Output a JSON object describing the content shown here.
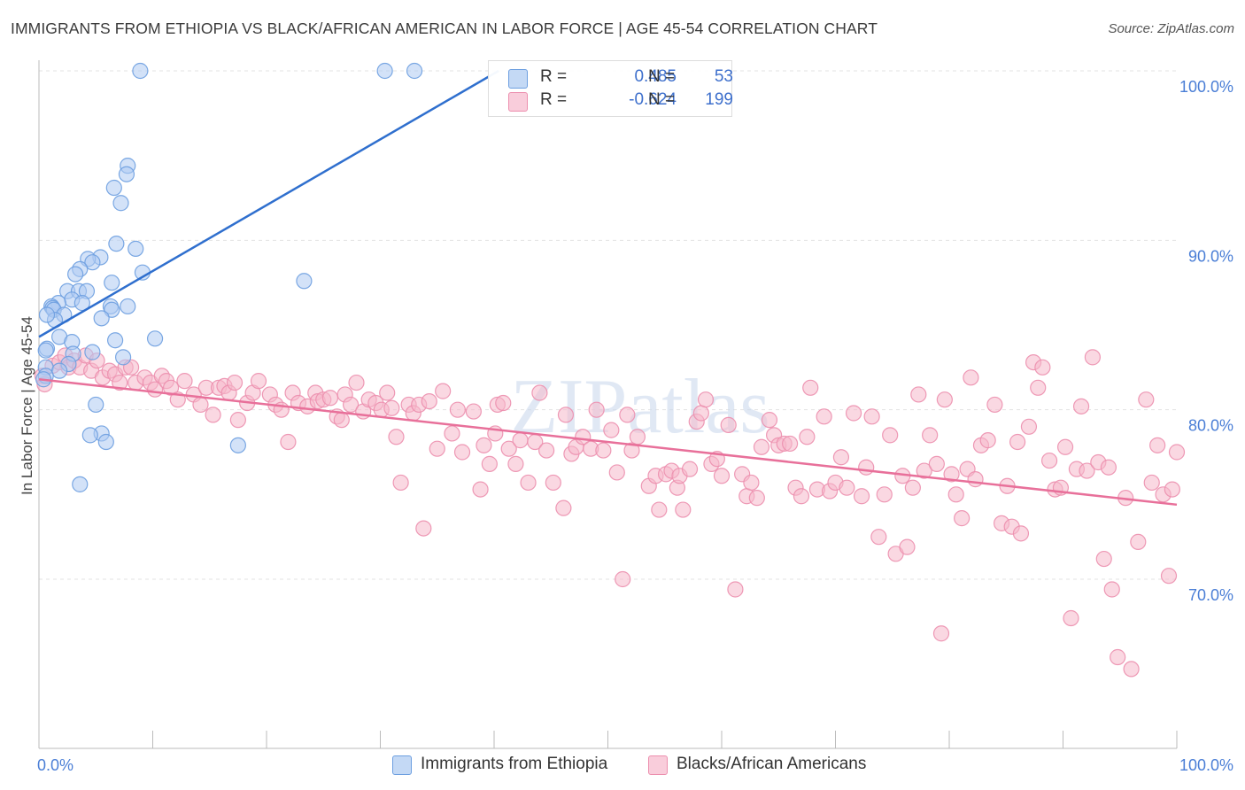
{
  "header": {
    "title": "IMMIGRANTS FROM ETHIOPIA VS BLACK/AFRICAN AMERICAN IN LABOR FORCE | AGE 45-54 CORRELATION CHART",
    "source": "Source: ZipAtlas.com"
  },
  "watermark": "ZIPatlas",
  "legend": {
    "r_label": "R =",
    "n_label": "N =",
    "series1": {
      "r": "0.485",
      "n": "53"
    },
    "series2": {
      "r": "-0.624",
      "n": "199"
    }
  },
  "colors": {
    "blue_fill": "#aecbf2",
    "blue_stroke": "#6d9fe0",
    "blue_line": "#2f6fce",
    "pink_fill": "#f5b8cb",
    "pink_stroke": "#ec8fae",
    "pink_line": "#e8709a",
    "tick_text": "#4a7ed6",
    "grid": "#e3e3e3"
  },
  "chart_data": {
    "type": "scatter",
    "title": "IMMIGRANTS FROM ETHIOPIA VS BLACK/AFRICAN AMERICAN IN LABOR FORCE | AGE 45-54 CORRELATION CHART",
    "xlabel": "",
    "ylabel": "In Labor Force | Age 45-54",
    "xlim": [
      0,
      100
    ],
    "ylim": [
      60.5,
      102
    ],
    "x_tick_labels": [
      {
        "value": 0,
        "label": "0.0%"
      },
      {
        "value": 100,
        "label": "100.0%"
      }
    ],
    "y_tick_labels": [
      {
        "value": 70,
        "label": "70.0%"
      },
      {
        "value": 80,
        "label": "80.0%"
      },
      {
        "value": 90,
        "label": "90.0%"
      },
      {
        "value": 100,
        "label": "100.0%"
      }
    ],
    "legend_position": "top-center",
    "series": [
      {
        "name": "Immigrants from Ethiopia",
        "R": 0.485,
        "N": 53,
        "trend": {
          "x": [
            0,
            40.4
          ],
          "y": [
            84.3,
            100.0
          ]
        },
        "points": [
          [
            8.9,
            100.0
          ],
          [
            30.4,
            100.0
          ],
          [
            33.0,
            100.0
          ],
          [
            7.8,
            94.4
          ],
          [
            7.7,
            93.9
          ],
          [
            6.6,
            93.1
          ],
          [
            7.2,
            92.2
          ],
          [
            6.8,
            89.8
          ],
          [
            8.5,
            89.5
          ],
          [
            5.4,
            89.0
          ],
          [
            4.3,
            88.9
          ],
          [
            4.7,
            88.7
          ],
          [
            3.6,
            88.3
          ],
          [
            9.1,
            88.1
          ],
          [
            3.2,
            88.0
          ],
          [
            23.3,
            87.6
          ],
          [
            6.4,
            87.5
          ],
          [
            2.5,
            87.0
          ],
          [
            3.5,
            87.0
          ],
          [
            4.2,
            87.0
          ],
          [
            2.9,
            86.5
          ],
          [
            1.7,
            86.3
          ],
          [
            1.1,
            86.1
          ],
          [
            3.8,
            86.3
          ],
          [
            7.8,
            86.1
          ],
          [
            6.3,
            86.1
          ],
          [
            1.2,
            86.0
          ],
          [
            6.4,
            85.9
          ],
          [
            1.3,
            85.9
          ],
          [
            2.2,
            85.6
          ],
          [
            1.4,
            85.3
          ],
          [
            5.5,
            85.4
          ],
          [
            0.7,
            85.6
          ],
          [
            1.8,
            84.3
          ],
          [
            10.2,
            84.2
          ],
          [
            6.7,
            84.1
          ],
          [
            2.9,
            84.0
          ],
          [
            0.7,
            83.6
          ],
          [
            0.6,
            83.5
          ],
          [
            3.0,
            83.3
          ],
          [
            4.7,
            83.4
          ],
          [
            7.4,
            83.1
          ],
          [
            0.6,
            82.5
          ],
          [
            2.6,
            82.7
          ],
          [
            1.8,
            82.3
          ],
          [
            0.6,
            82.0
          ],
          [
            5.0,
            80.3
          ],
          [
            5.5,
            78.6
          ],
          [
            4.5,
            78.5
          ],
          [
            5.9,
            78.1
          ],
          [
            17.5,
            77.9
          ],
          [
            3.6,
            75.6
          ],
          [
            0.4,
            81.8
          ]
        ]
      },
      {
        "name": "Blacks/African Americans",
        "R": -0.624,
        "N": 199,
        "trend": {
          "x": [
            0,
            100
          ],
          "y": [
            81.8,
            74.4
          ]
        },
        "points": [
          [
            0.3,
            82.0
          ],
          [
            0.5,
            81.5
          ],
          [
            1.2,
            82.6
          ],
          [
            1.8,
            82.8
          ],
          [
            2.3,
            83.2
          ],
          [
            2.6,
            82.5
          ],
          [
            3.1,
            82.9
          ],
          [
            3.6,
            82.5
          ],
          [
            4.1,
            83.2
          ],
          [
            4.6,
            82.3
          ],
          [
            5.1,
            82.9
          ],
          [
            5.6,
            81.9
          ],
          [
            6.2,
            82.3
          ],
          [
            6.7,
            82.1
          ],
          [
            7.1,
            81.6
          ],
          [
            7.6,
            82.5
          ],
          [
            8.1,
            82.5
          ],
          [
            8.5,
            81.6
          ],
          [
            9.3,
            81.9
          ],
          [
            9.8,
            81.6
          ],
          [
            10.2,
            81.2
          ],
          [
            10.8,
            82.0
          ],
          [
            11.2,
            81.7
          ],
          [
            11.6,
            81.3
          ],
          [
            12.2,
            80.6
          ],
          [
            12.8,
            81.7
          ],
          [
            13.6,
            80.9
          ],
          [
            14.2,
            80.3
          ],
          [
            14.7,
            81.3
          ],
          [
            15.3,
            79.7
          ],
          [
            15.8,
            81.3
          ],
          [
            16.3,
            81.4
          ],
          [
            16.7,
            81.0
          ],
          [
            17.2,
            81.6
          ],
          [
            17.5,
            79.4
          ],
          [
            18.3,
            80.4
          ],
          [
            18.8,
            81.0
          ],
          [
            19.3,
            81.7
          ],
          [
            20.3,
            80.9
          ],
          [
            20.8,
            80.3
          ],
          [
            21.3,
            80.0
          ],
          [
            21.9,
            78.1
          ],
          [
            22.3,
            81.0
          ],
          [
            22.8,
            80.4
          ],
          [
            23.6,
            80.2
          ],
          [
            24.3,
            81.0
          ],
          [
            24.5,
            80.5
          ],
          [
            25.0,
            80.6
          ],
          [
            25.6,
            80.7
          ],
          [
            26.2,
            79.6
          ],
          [
            26.6,
            79.4
          ],
          [
            26.9,
            80.9
          ],
          [
            27.4,
            80.3
          ],
          [
            27.9,
            81.6
          ],
          [
            28.5,
            79.9
          ],
          [
            29.0,
            80.6
          ],
          [
            29.6,
            80.4
          ],
          [
            30.1,
            80.0
          ],
          [
            30.6,
            81.0
          ],
          [
            31.0,
            80.1
          ],
          [
            31.4,
            78.4
          ],
          [
            31.8,
            75.7
          ],
          [
            32.5,
            80.3
          ],
          [
            32.9,
            79.8
          ],
          [
            33.4,
            80.3
          ],
          [
            33.8,
            73.0
          ],
          [
            34.3,
            80.5
          ],
          [
            35.0,
            77.7
          ],
          [
            35.5,
            81.1
          ],
          [
            36.3,
            78.6
          ],
          [
            36.8,
            80.0
          ],
          [
            37.2,
            77.5
          ],
          [
            38.2,
            79.9
          ],
          [
            38.8,
            75.3
          ],
          [
            39.1,
            77.9
          ],
          [
            39.6,
            76.8
          ],
          [
            40.1,
            78.6
          ],
          [
            40.3,
            80.3
          ],
          [
            40.8,
            80.4
          ],
          [
            41.3,
            77.7
          ],
          [
            41.9,
            76.8
          ],
          [
            42.3,
            78.2
          ],
          [
            43.0,
            75.7
          ],
          [
            43.6,
            78.1
          ],
          [
            44.0,
            81.0
          ],
          [
            44.6,
            77.6
          ],
          [
            45.2,
            75.7
          ],
          [
            46.1,
            74.2
          ],
          [
            46.3,
            79.7
          ],
          [
            46.8,
            77.4
          ],
          [
            47.2,
            77.8
          ],
          [
            47.8,
            78.4
          ],
          [
            48.5,
            77.7
          ],
          [
            49.0,
            80.0
          ],
          [
            49.6,
            77.6
          ],
          [
            50.3,
            78.8
          ],
          [
            50.8,
            76.3
          ],
          [
            51.3,
            70.0
          ],
          [
            51.7,
            79.7
          ],
          [
            52.1,
            77.6
          ],
          [
            52.6,
            78.4
          ],
          [
            53.6,
            75.5
          ],
          [
            54.2,
            76.1
          ],
          [
            54.5,
            74.1
          ],
          [
            55.1,
            76.2
          ],
          [
            55.6,
            76.4
          ],
          [
            56.1,
            75.4
          ],
          [
            56.3,
            76.1
          ],
          [
            56.6,
            74.1
          ],
          [
            57.2,
            76.5
          ],
          [
            57.8,
            79.3
          ],
          [
            58.2,
            79.8
          ],
          [
            58.6,
            80.6
          ],
          [
            59.1,
            76.8
          ],
          [
            59.6,
            77.1
          ],
          [
            60.0,
            76.1
          ],
          [
            60.6,
            79.1
          ],
          [
            61.2,
            69.4
          ],
          [
            61.8,
            76.2
          ],
          [
            62.2,
            74.9
          ],
          [
            62.6,
            75.7
          ],
          [
            63.1,
            74.8
          ],
          [
            63.5,
            77.8
          ],
          [
            64.2,
            79.4
          ],
          [
            64.6,
            78.5
          ],
          [
            65.0,
            77.9
          ],
          [
            65.5,
            78.0
          ],
          [
            66.0,
            78.0
          ],
          [
            66.5,
            75.4
          ],
          [
            67.0,
            74.9
          ],
          [
            67.5,
            78.4
          ],
          [
            67.8,
            81.3
          ],
          [
            68.4,
            75.3
          ],
          [
            69.0,
            79.6
          ],
          [
            69.5,
            75.2
          ],
          [
            70.0,
            75.7
          ],
          [
            70.5,
            77.2
          ],
          [
            71.0,
            75.4
          ],
          [
            71.6,
            79.8
          ],
          [
            72.3,
            74.9
          ],
          [
            72.7,
            76.6
          ],
          [
            73.2,
            79.6
          ],
          [
            73.8,
            72.5
          ],
          [
            74.3,
            75.0
          ],
          [
            74.8,
            78.5
          ],
          [
            75.3,
            71.5
          ],
          [
            75.9,
            76.1
          ],
          [
            76.3,
            71.9
          ],
          [
            76.8,
            75.4
          ],
          [
            77.3,
            80.9
          ],
          [
            77.8,
            76.4
          ],
          [
            78.3,
            78.5
          ],
          [
            78.9,
            76.8
          ],
          [
            79.3,
            66.8
          ],
          [
            79.6,
            80.6
          ],
          [
            80.2,
            76.2
          ],
          [
            80.6,
            75.0
          ],
          [
            81.1,
            73.6
          ],
          [
            81.6,
            76.5
          ],
          [
            81.9,
            81.9
          ],
          [
            82.3,
            75.9
          ],
          [
            82.8,
            77.9
          ],
          [
            83.4,
            78.2
          ],
          [
            84.0,
            80.3
          ],
          [
            84.6,
            73.3
          ],
          [
            85.1,
            75.5
          ],
          [
            85.5,
            73.1
          ],
          [
            86.0,
            78.1
          ],
          [
            86.3,
            72.7
          ],
          [
            87.0,
            79.0
          ],
          [
            87.4,
            82.8
          ],
          [
            87.8,
            81.3
          ],
          [
            88.2,
            82.5
          ],
          [
            88.8,
            77.0
          ],
          [
            89.3,
            75.3
          ],
          [
            89.8,
            75.4
          ],
          [
            90.2,
            77.8
          ],
          [
            90.7,
            67.7
          ],
          [
            91.2,
            76.5
          ],
          [
            91.6,
            80.2
          ],
          [
            92.1,
            76.4
          ],
          [
            92.6,
            83.1
          ],
          [
            93.1,
            76.9
          ],
          [
            93.6,
            71.2
          ],
          [
            94.0,
            76.6
          ],
          [
            94.3,
            69.4
          ],
          [
            94.8,
            65.4
          ],
          [
            95.5,
            74.8
          ],
          [
            96.0,
            64.7
          ],
          [
            96.6,
            72.2
          ],
          [
            97.3,
            80.6
          ],
          [
            97.8,
            75.7
          ],
          [
            98.3,
            77.9
          ],
          [
            98.8,
            75.0
          ],
          [
            99.3,
            70.2
          ],
          [
            99.6,
            75.3
          ],
          [
            100.0,
            77.5
          ]
        ]
      }
    ]
  }
}
